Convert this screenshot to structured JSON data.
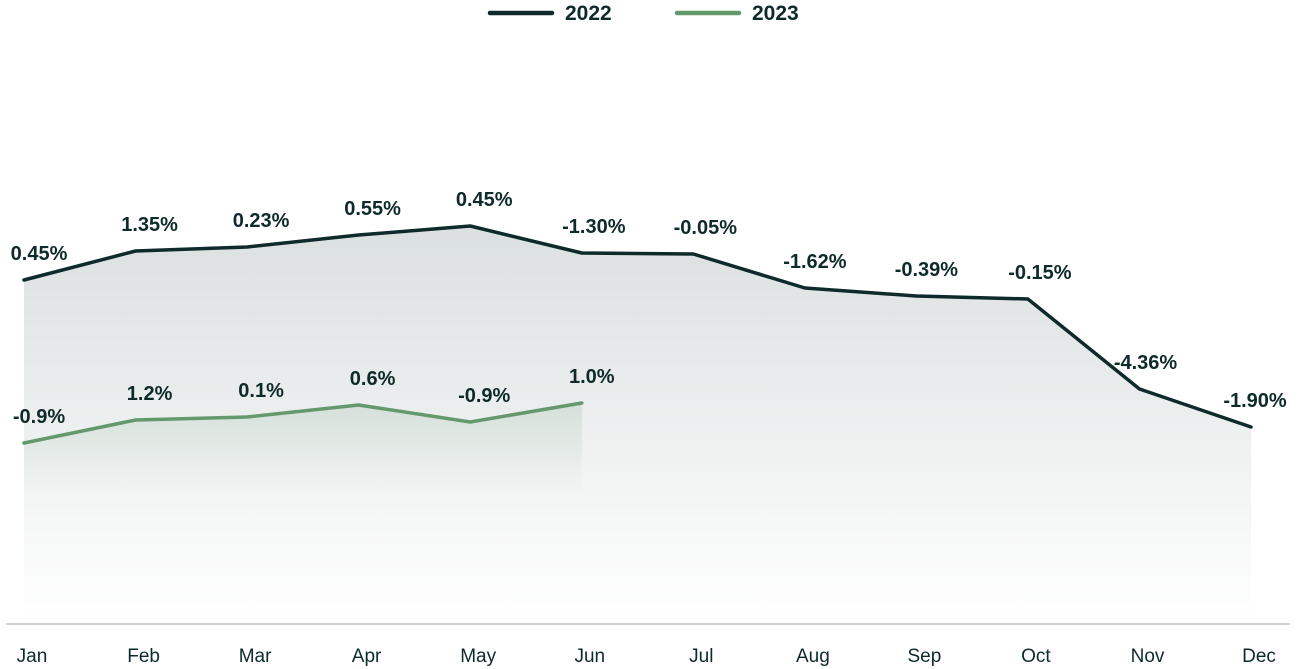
{
  "chart_data": {
    "type": "line",
    "categories": [
      "Jan",
      "Feb",
      "Mar",
      "Apr",
      "May",
      "Jun",
      "Jul",
      "Aug",
      "Sep",
      "Oct",
      "Nov",
      "Dec"
    ],
    "legend_position": "top-center",
    "grid": false,
    "series": [
      {
        "name": "2022",
        "color": "#0f2a2b",
        "labels": [
          "0.45%",
          "1.35%",
          "0.23%",
          "0.55%",
          "0.45%",
          "-1.30%",
          "-0.05%",
          "-1.62%",
          "-0.39%",
          "-0.15%",
          "-4.36%",
          "-1.90%"
        ]
      },
      {
        "name": "2023",
        "color": "#63996d",
        "labels": [
          "-0.9%",
          "1.2%",
          "0.1%",
          "0.6%",
          "-0.9%",
          "1.0%"
        ]
      }
    ]
  }
}
